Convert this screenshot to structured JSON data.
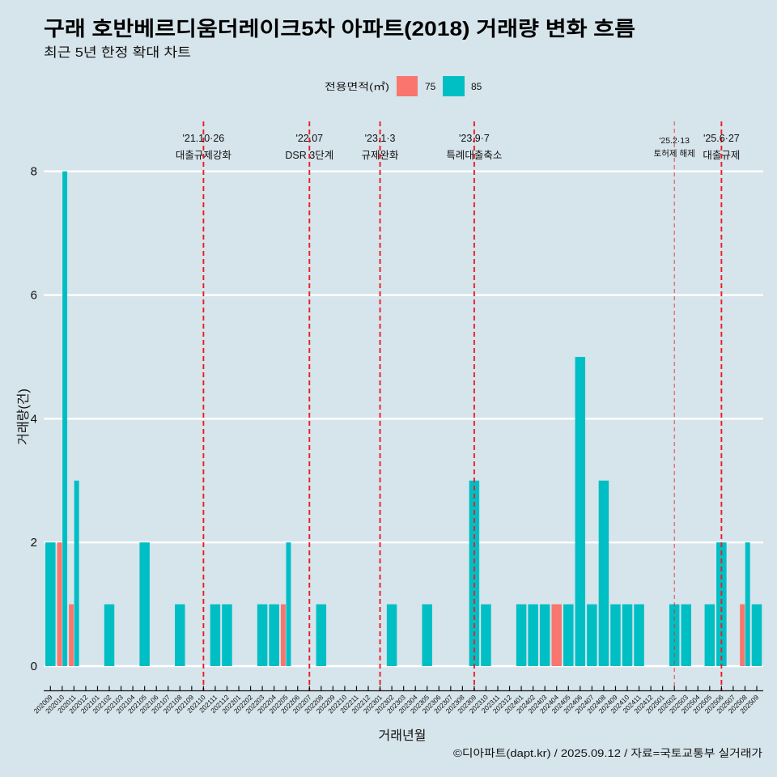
{
  "title": "구래 호반베르디움더레이크5차 아파트(2018) 거래량 변화 흐름",
  "subtitle": "최근 5년 한정 확대 차트",
  "caption": "©디아파트(dapt.kr) / 2025.09.12 / 자료=국토교통부 실거래가",
  "legend": {
    "title": "전용면적(㎡)",
    "items": [
      {
        "label": "75",
        "color": "#F8766D"
      },
      {
        "label": "85",
        "color": "#00BFC4"
      }
    ]
  },
  "chart_data": {
    "type": "bar",
    "title": "구래 호반베르디움더레이크5차 아파트(2018) 거래량 변화 흐름",
    "subtitle": "최근 5년 한정 확대 차트",
    "xlabel": "거래년월",
    "ylabel": "거래량(건)",
    "ylim": [
      0,
      8
    ],
    "yticks": [
      "0",
      "2",
      "4",
      "6",
      "8"
    ],
    "grid": "major horizontal",
    "legend_position": "top",
    "bar_position": "dodge",
    "categories": [
      "202009",
      "202010",
      "202011",
      "202012",
      "202101",
      "202102",
      "202103",
      "202104",
      "202105",
      "202106",
      "202107",
      "202108",
      "202109",
      "202110",
      "202111",
      "202112",
      "202201",
      "202202",
      "202203",
      "202204",
      "202205",
      "202206",
      "202207",
      "202208",
      "202209",
      "202210",
      "202211",
      "202212",
      "202301",
      "202302",
      "202303",
      "202304",
      "202305",
      "202306",
      "202307",
      "202308",
      "202309",
      "202310",
      "202311",
      "202312",
      "202401",
      "202402",
      "202403",
      "202404",
      "202405",
      "202406",
      "202407",
      "202408",
      "202409",
      "202410",
      "202411",
      "202412",
      "202501",
      "202502",
      "202503",
      "202504",
      "202505",
      "202506",
      "202507",
      "202508",
      "202509"
    ],
    "series": [
      {
        "name": "75",
        "color": "#F8766D",
        "values": [
          0,
          2,
          1,
          0,
          0,
          0,
          0,
          0,
          0,
          0,
          0,
          0,
          0,
          0,
          0,
          0,
          0,
          0,
          0,
          0,
          1,
          0,
          0,
          0,
          0,
          0,
          0,
          0,
          0,
          0,
          0,
          0,
          0,
          0,
          0,
          0,
          0,
          0,
          0,
          0,
          0,
          0,
          0,
          1,
          0,
          0,
          0,
          0,
          0,
          0,
          0,
          0,
          0,
          0,
          0,
          0,
          0,
          0,
          0,
          1,
          0
        ]
      },
      {
        "name": "85",
        "color": "#00BFC4",
        "values": [
          2,
          8,
          3,
          0,
          0,
          1,
          0,
          0,
          2,
          0,
          0,
          1,
          0,
          0,
          1,
          1,
          0,
          0,
          1,
          1,
          2,
          0,
          0,
          1,
          0,
          0,
          0,
          0,
          0,
          1,
          0,
          0,
          1,
          0,
          0,
          0,
          3,
          1,
          0,
          0,
          1,
          1,
          1,
          0,
          1,
          5,
          1,
          3,
          1,
          1,
          1,
          0,
          0,
          1,
          1,
          0,
          1,
          2,
          0,
          2,
          1
        ]
      }
    ],
    "annotations": [
      {
        "category": "202110",
        "date": "'21.10·26",
        "label": "대출규제강화",
        "style": "major",
        "color": "#ee1c25"
      },
      {
        "category": "202207",
        "date": "'22.07",
        "label": "DSR 3단계",
        "style": "major",
        "color": "#ee1c25"
      },
      {
        "category": "202301",
        "date": "'23.1·3",
        "label": "규제완화",
        "style": "major",
        "color": "#ee1c25"
      },
      {
        "category": "202309",
        "date": "'23.9·7",
        "label": "특례대출축소",
        "style": "major",
        "color": "#ee1c25"
      },
      {
        "category": "202502",
        "date": "'25.2·13",
        "label": "토허제 해제",
        "style": "minor",
        "color": "#ee1c25"
      },
      {
        "category": "202506",
        "date": "'25.6·27",
        "label": "대출규제",
        "style": "major",
        "color": "#ee1c25"
      }
    ]
  }
}
